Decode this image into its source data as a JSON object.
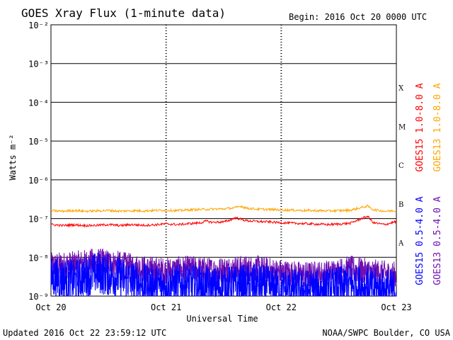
{
  "chart_data": {
    "type": "line",
    "title": "GOES Xray Flux (1-minute data)",
    "begin_label": "Begin:  2016 Oct 20 0000 UTC",
    "xlabel": "Universal Time",
    "ylabel": "Watts m⁻²",
    "y_scale": "log",
    "ylim": [
      1e-09,
      0.01
    ],
    "xlim": [
      0,
      3
    ],
    "x_ticks": [
      {
        "label": "Oct 20",
        "value": 0
      },
      {
        "label": "Oct 21",
        "value": 1
      },
      {
        "label": "Oct 22",
        "value": 2
      },
      {
        "label": "Oct 23",
        "value": 3
      }
    ],
    "y_ticks": [
      {
        "label": "10⁻⁹",
        "value": 1e-09
      },
      {
        "label": "10⁻⁸",
        "value": 1e-08
      },
      {
        "label": "10⁻⁷",
        "value": 1e-07
      },
      {
        "label": "10⁻⁶",
        "value": 1e-06
      },
      {
        "label": "10⁻⁵",
        "value": 1e-05
      },
      {
        "label": "10⁻⁴",
        "value": 0.0001
      },
      {
        "label": "10⁻³",
        "value": 0.001
      },
      {
        "label": "10⁻²",
        "value": 0.01
      }
    ],
    "flare_classes": [
      {
        "label": "X",
        "value": 0.00024
      },
      {
        "label": "M",
        "value": 2.4e-05
      },
      {
        "label": "C",
        "value": 2.4e-06
      },
      {
        "label": "B",
        "value": 2.4e-07
      },
      {
        "label": "A",
        "value": 2.4e-08
      }
    ],
    "grid": true,
    "legend": "right, vertical",
    "series": [
      {
        "name": "GOES15 1.0-8.0 A",
        "color": "#ff0000",
        "x": [
          0,
          0.1,
          0.2,
          0.3,
          0.4,
          0.5,
          0.6,
          0.7,
          0.8,
          0.9,
          1.0,
          1.1,
          1.2,
          1.3,
          1.35,
          1.4,
          1.5,
          1.55,
          1.6,
          1.7,
          1.8,
          1.9,
          2.0,
          2.1,
          2.2,
          2.3,
          2.4,
          2.5,
          2.6,
          2.75,
          2.8,
          2.9,
          3.0
        ],
        "values": [
          7e-08,
          6.6e-08,
          6.9e-08,
          6.6e-08,
          6.7e-08,
          7e-08,
          6.6e-08,
          7e-08,
          6.7e-08,
          6.9e-08,
          7.3e-08,
          7e-08,
          7.4e-08,
          7.8e-08,
          8.6e-08,
          8e-08,
          8.2e-08,
          9e-08,
          1.05e-07,
          8.8e-08,
          8.4e-08,
          8.2e-08,
          7.8e-08,
          7.6e-08,
          7.4e-08,
          7.2e-08,
          7e-08,
          7.2e-08,
          7.6e-08,
          1.15e-07,
          7.8e-08,
          7e-08,
          8.4e-08
        ]
      },
      {
        "name": "GOES13 1.0-8.0 A",
        "color": "#ffa500",
        "x": [
          0,
          0.1,
          0.2,
          0.3,
          0.4,
          0.5,
          0.6,
          0.7,
          0.8,
          0.9,
          1.0,
          1.1,
          1.2,
          1.3,
          1.4,
          1.5,
          1.6,
          1.65,
          1.7,
          1.8,
          1.9,
          2.0,
          2.1,
          2.2,
          2.3,
          2.4,
          2.5,
          2.6,
          2.75,
          2.8,
          2.9,
          3.0
        ],
        "values": [
          1.6e-07,
          1.55e-07,
          1.62e-07,
          1.55e-07,
          1.58e-07,
          1.62e-07,
          1.55e-07,
          1.6e-07,
          1.58e-07,
          1.62e-07,
          1.65e-07,
          1.6e-07,
          1.68e-07,
          1.72e-07,
          1.75e-07,
          1.78e-07,
          1.9e-07,
          2.1e-07,
          1.85e-07,
          1.75e-07,
          1.72e-07,
          1.68e-07,
          1.65e-07,
          1.62e-07,
          1.6e-07,
          1.58e-07,
          1.6e-07,
          1.65e-07,
          2.1e-07,
          1.7e-07,
          1.55e-07,
          1.6e-07
        ]
      },
      {
        "name": "GOES15 0.5-4.0 A",
        "color": "#0000ff",
        "x": [
          0,
          0.2,
          0.4,
          0.6,
          0.8,
          1.0,
          1.2,
          1.4,
          1.6,
          1.8,
          2.0,
          2.2,
          2.4,
          2.6,
          2.8,
          3.0
        ],
        "values": [
          3e-09,
          2.5e-09,
          4e-09,
          3e-09,
          2e-09,
          1.8e-09,
          2e-09,
          1.6e-09,
          1.8e-09,
          2e-09,
          1.5e-09,
          1.4e-09,
          1.5e-09,
          2e-09,
          1.5e-09,
          1.4e-09
        ]
      },
      {
        "name": "GOES13 0.5-4.0 A",
        "color": "#7010b0",
        "x": [
          0,
          0.2,
          0.4,
          0.6,
          0.8,
          1.0,
          1.2,
          1.4,
          1.6,
          1.8,
          2.0,
          2.2,
          2.4,
          2.6,
          2.8,
          3.0
        ],
        "values": [
          6e-09,
          6.5e-09,
          8e-09,
          6.5e-09,
          5e-09,
          4.5e-09,
          5e-09,
          4.5e-09,
          5e-09,
          5e-09,
          4e-09,
          3.5e-09,
          3.8e-09,
          5e-09,
          4e-09,
          3.5e-09
        ]
      }
    ]
  },
  "footer": {
    "updated": "Updated 2016 Oct 22 23:59:12 UTC",
    "source": "NOAA/SWPC Boulder, CO USA"
  }
}
